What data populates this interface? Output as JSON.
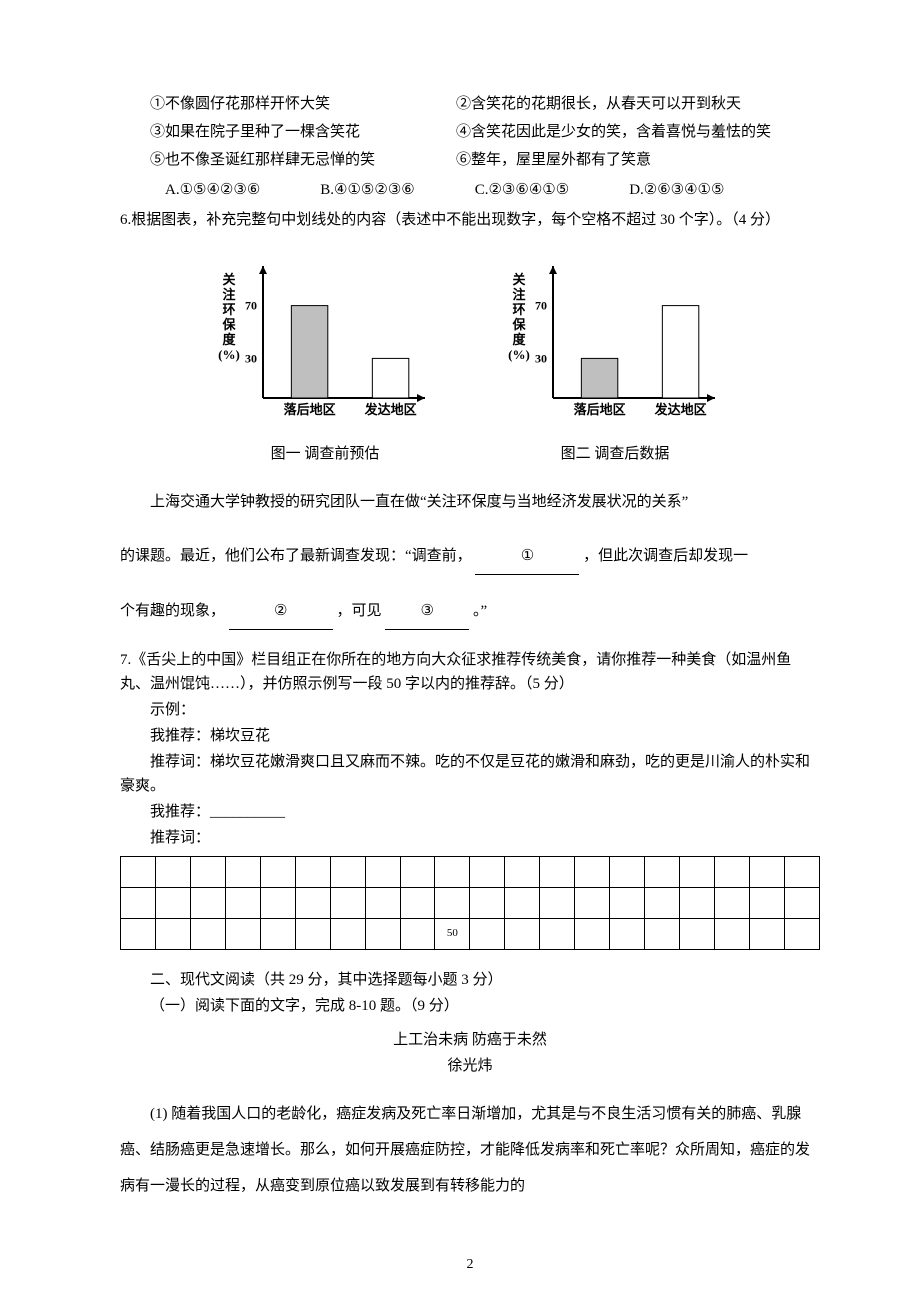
{
  "q5": {
    "lines": {
      "l1": "①不像圆仔花那样开怀大笑",
      "l2": "②含笑花的花期很长，从春天可以开到秋天",
      "l3": "③如果在院子里种了一棵含笑花",
      "l4": "④含笑花因此是少女的笑，含着喜悦与羞怯的笑",
      "l5": "⑤也不像圣诞红那样肆无忌惮的笑",
      "l6": "⑥整年，屋里屋外都有了笑意"
    },
    "options": {
      "a": "A.①⑤④②③⑥",
      "b": "B.④①⑤②③⑥",
      "c": "C.②③⑥④①⑤",
      "d": "D.②⑥③④①⑤"
    }
  },
  "q6": {
    "prompt": "6.根据图表，补充完整句中划线处的内容（表述中不能出现数字，每个空格不超过 30 个字）。（4 分）",
    "chart1": {
      "type": "bar",
      "y_axis_label_lines": [
        "关",
        "注",
        "环",
        "保",
        "度",
        "(%)"
      ],
      "categories": [
        "落后地区",
        "发达地区"
      ],
      "values": [
        70,
        30
      ],
      "fills": [
        "#bfbfbf",
        "#ffffff"
      ],
      "ytick_labels": [
        "30",
        "70"
      ],
      "ytick_values": [
        30,
        70
      ],
      "ylim": [
        0,
        100
      ],
      "axis_color": "#000000",
      "caption": "图一 调查前预估"
    },
    "chart2": {
      "type": "bar",
      "y_axis_label_lines": [
        "关",
        "注",
        "环",
        "保",
        "度",
        "(%)"
      ],
      "categories": [
        "落后地区",
        "发达地区"
      ],
      "values": [
        30,
        70
      ],
      "fills": [
        "#bfbfbf",
        "#ffffff"
      ],
      "ytick_labels": [
        "30",
        "70"
      ],
      "ytick_values": [
        30,
        70
      ],
      "ylim": [
        0,
        100
      ],
      "axis_color": "#000000",
      "caption": "图二 调查后数据"
    },
    "passage": {
      "p1a": "上海交通大学钟教授的研究团队一直在做“关注环保度与当地经济发展状况的关系”",
      "p2a": "的课题。最近，他们公布了最新调查发现：“调查前，",
      "slot1": "①",
      "p2b": "，但此次调查后却发现一",
      "p3a": "个有趣的现象，",
      "slot2": "②",
      "p3b": "，可见",
      "slot3": "③",
      "p3c": "。”"
    }
  },
  "q7": {
    "prompt": "7.《舌尖上的中国》栏目组正在你所在的地方向大众征求推荐传统美食，请你推荐一种美食（如温州鱼丸、温州馄饨……），并仿照示例写一段 50 字以内的推荐辞。（5 分）",
    "example_label": "示例：",
    "example_rec": "我推荐：梯坎豆花",
    "example_word_label": "推荐词：梯坎豆花嫩滑爽口且又麻而不辣。吃的不仅是豆花的嫩滑和麻劲，吃的更是川渝人的朴实和豪爽。",
    "blank_rec": "我推荐：__________",
    "blank_word_label": "推荐词：",
    "grid_mark_cell": "50"
  },
  "section2": {
    "header": "二、现代文阅读（共 29 分，其中选择题每小题 3 分）",
    "sub": "（一）阅读下面的文字，完成 8-10 题。（9 分）",
    "title": "上工治未病 防癌于未然",
    "author": "徐光炜",
    "para1": "(1) 随着我国人口的老龄化，癌症发病及死亡率日渐增加，尤其是与不良生活习惯有关的肺癌、乳腺癌、结肠癌更是急速增长。那么，如何开展癌症防控，才能降低发病率和死亡率呢？众所周知，癌症的发病有一漫长的过程，从癌变到原位癌以致发展到有转移能力的"
  },
  "page_number": "2"
}
